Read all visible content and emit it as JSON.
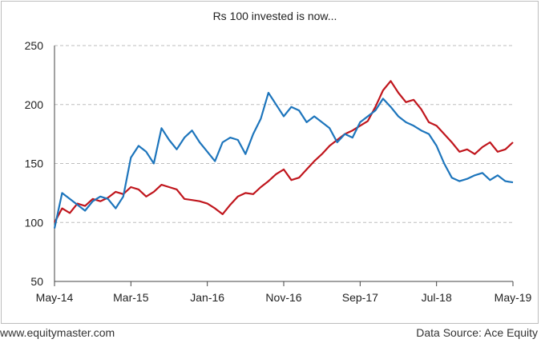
{
  "chart_data": {
    "type": "line",
    "title": "Rs 100 invested is now...",
    "xlabel": "",
    "ylabel": "",
    "ylim": [
      50,
      250
    ],
    "yticks": [
      50,
      100,
      150,
      200,
      250
    ],
    "xticks": [
      "May-14",
      "Mar-15",
      "Jan-16",
      "Nov-16",
      "Sep-17",
      "Jul-18",
      "May-19"
    ],
    "grid": "horizontal dashed",
    "legend": "none",
    "x_months": {
      "start": "May-14",
      "end": "May-19",
      "count": 61
    },
    "series": [
      {
        "color": "#c0161d",
        "points": [
          [
            0,
            100
          ],
          [
            1,
            112
          ],
          [
            2,
            108
          ],
          [
            3,
            116
          ],
          [
            4,
            114
          ],
          [
            5,
            120
          ],
          [
            6,
            118
          ],
          [
            7,
            121
          ],
          [
            8,
            126
          ],
          [
            9,
            124
          ],
          [
            10,
            130
          ],
          [
            11,
            128
          ],
          [
            12,
            122
          ],
          [
            13,
            126
          ],
          [
            14,
            132
          ],
          [
            15,
            130
          ],
          [
            16,
            128
          ],
          [
            17,
            120
          ],
          [
            18,
            119
          ],
          [
            19,
            118
          ],
          [
            20,
            116
          ],
          [
            21,
            112
          ],
          [
            22,
            107
          ],
          [
            23,
            115
          ],
          [
            24,
            122
          ],
          [
            25,
            125
          ],
          [
            26,
            124
          ],
          [
            27,
            130
          ],
          [
            28,
            135
          ],
          [
            29,
            141
          ],
          [
            30,
            145
          ],
          [
            31,
            136
          ],
          [
            32,
            138
          ],
          [
            33,
            145
          ],
          [
            34,
            152
          ],
          [
            35,
            158
          ],
          [
            36,
            165
          ],
          [
            37,
            170
          ],
          [
            38,
            175
          ],
          [
            39,
            178
          ],
          [
            40,
            182
          ],
          [
            41,
            186
          ],
          [
            42,
            198
          ],
          [
            43,
            212
          ],
          [
            44,
            220
          ],
          [
            45,
            210
          ],
          [
            46,
            202
          ],
          [
            47,
            204
          ],
          [
            48,
            196
          ],
          [
            49,
            185
          ],
          [
            50,
            182
          ],
          [
            51,
            175
          ],
          [
            52,
            168
          ],
          [
            53,
            160
          ],
          [
            54,
            162
          ],
          [
            55,
            158
          ],
          [
            56,
            164
          ],
          [
            57,
            168
          ],
          [
            58,
            160
          ],
          [
            59,
            162
          ],
          [
            60,
            168
          ]
        ]
      },
      {
        "color": "#1d75bc",
        "points": [
          [
            0,
            95
          ],
          [
            1,
            125
          ],
          [
            2,
            120
          ],
          [
            3,
            115
          ],
          [
            4,
            110
          ],
          [
            5,
            118
          ],
          [
            6,
            122
          ],
          [
            7,
            120
          ],
          [
            8,
            112
          ],
          [
            9,
            122
          ],
          [
            10,
            155
          ],
          [
            11,
            165
          ],
          [
            12,
            160
          ],
          [
            13,
            150
          ],
          [
            14,
            180
          ],
          [
            15,
            170
          ],
          [
            16,
            162
          ],
          [
            17,
            172
          ],
          [
            18,
            178
          ],
          [
            19,
            168
          ],
          [
            20,
            160
          ],
          [
            21,
            152
          ],
          [
            22,
            168
          ],
          [
            23,
            172
          ],
          [
            24,
            170
          ],
          [
            25,
            158
          ],
          [
            26,
            175
          ],
          [
            27,
            188
          ],
          [
            28,
            210
          ],
          [
            29,
            200
          ],
          [
            30,
            190
          ],
          [
            31,
            198
          ],
          [
            32,
            195
          ],
          [
            33,
            185
          ],
          [
            34,
            190
          ],
          [
            35,
            185
          ],
          [
            36,
            180
          ],
          [
            37,
            168
          ],
          [
            38,
            175
          ],
          [
            39,
            172
          ],
          [
            40,
            185
          ],
          [
            41,
            190
          ],
          [
            42,
            195
          ],
          [
            43,
            205
          ],
          [
            44,
            198
          ],
          [
            45,
            190
          ],
          [
            46,
            185
          ],
          [
            47,
            182
          ],
          [
            48,
            178
          ],
          [
            49,
            175
          ],
          [
            50,
            165
          ],
          [
            51,
            150
          ],
          [
            52,
            138
          ],
          [
            53,
            135
          ],
          [
            54,
            137
          ],
          [
            55,
            140
          ],
          [
            56,
            142
          ],
          [
            57,
            136
          ],
          [
            58,
            140
          ],
          [
            59,
            135
          ],
          [
            60,
            134
          ]
        ]
      }
    ]
  },
  "footer": {
    "website": "www.equitymaster.com",
    "source": "Data Source: Ace Equity"
  },
  "colors": {
    "grid": "#bdbdbd",
    "axis": "#444444",
    "red_series": "#c0161d",
    "blue_series": "#1d75bc"
  }
}
